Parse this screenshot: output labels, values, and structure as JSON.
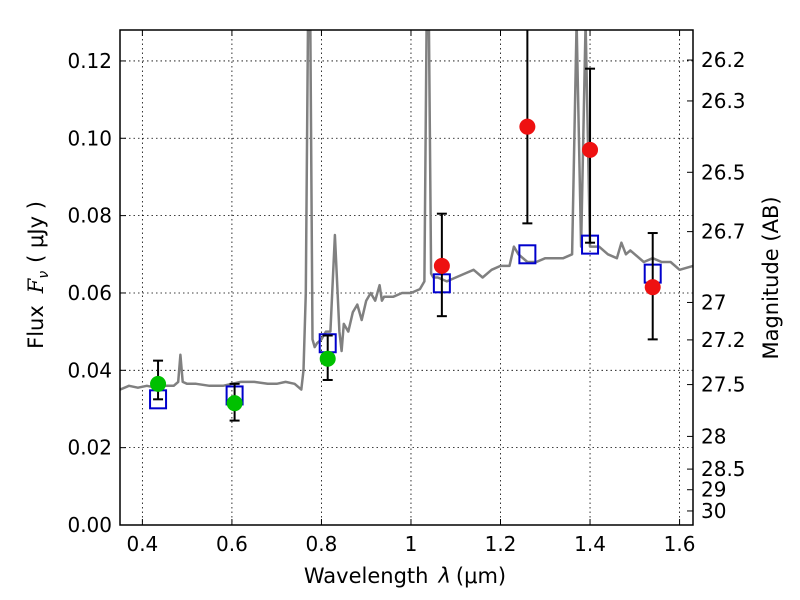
{
  "chart_data": {
    "type": "scatter",
    "xlabel_main": "Wavelength",
    "xlabel_symbol": "λ",
    "xlabel_unit": "(μm)",
    "ylabel_main": "Flux",
    "ylabel_symbol": "F",
    "ylabel_sub": "ν",
    "ylabel_unit": "( μJy )",
    "y2label": "Magnitude (AB)",
    "xlim": [
      0.35,
      1.63
    ],
    "ylim": [
      0.0,
      0.128
    ],
    "grid": true,
    "xticks": [
      {
        "value": 0.4,
        "label": "0.4"
      },
      {
        "value": 0.6,
        "label": "0.6"
      },
      {
        "value": 0.8,
        "label": "0.8"
      },
      {
        "value": 1.0,
        "label": "1"
      },
      {
        "value": 1.2,
        "label": "1.2"
      },
      {
        "value": 1.4,
        "label": "1.4"
      },
      {
        "value": 1.6,
        "label": "1.6"
      }
    ],
    "yticks": [
      {
        "value": 0.0,
        "label": "0.00"
      },
      {
        "value": 0.02,
        "label": "0.02"
      },
      {
        "value": 0.04,
        "label": "0.04"
      },
      {
        "value": 0.06,
        "label": "0.06"
      },
      {
        "value": 0.08,
        "label": "0.08"
      },
      {
        "value": 0.1,
        "label": "0.10"
      },
      {
        "value": 0.12,
        "label": "0.12"
      }
    ],
    "y2ticks": [
      {
        "mag": 26.2,
        "label": "26.2"
      },
      {
        "mag": 26.3,
        "label": "26.3"
      },
      {
        "mag": 26.5,
        "label": "26.5"
      },
      {
        "mag": 26.7,
        "label": "26.7"
      },
      {
        "mag": 27.0,
        "label": "27"
      },
      {
        "mag": 27.2,
        "label": "27.2"
      },
      {
        "mag": 27.5,
        "label": "27.5"
      },
      {
        "mag": 28.0,
        "label": "28"
      },
      {
        "mag": 28.5,
        "label": "28.5"
      },
      {
        "mag": 29.0,
        "label": "29"
      },
      {
        "mag": 30.0,
        "label": "30"
      }
    ],
    "series": [
      {
        "kind": "model_spectrum",
        "color": "#808080",
        "x": [
          0.35,
          0.37,
          0.39,
          0.41,
          0.43,
          0.45,
          0.47,
          0.48,
          0.485,
          0.49,
          0.5,
          0.52,
          0.55,
          0.58,
          0.6,
          0.62,
          0.65,
          0.68,
          0.7,
          0.72,
          0.74,
          0.755,
          0.76,
          0.765,
          0.77,
          0.775,
          0.78,
          0.785,
          0.79,
          0.8,
          0.81,
          0.82,
          0.83,
          0.84,
          0.845,
          0.85,
          0.86,
          0.87,
          0.88,
          0.89,
          0.9,
          0.91,
          0.92,
          0.93,
          0.935,
          0.94,
          0.96,
          0.98,
          1.0,
          1.02,
          1.03,
          1.035,
          1.04,
          1.045,
          1.05,
          1.06,
          1.08,
          1.1,
          1.12,
          1.14,
          1.16,
          1.18,
          1.2,
          1.22,
          1.23,
          1.24,
          1.26,
          1.28,
          1.3,
          1.32,
          1.34,
          1.36,
          1.37,
          1.38,
          1.39,
          1.4,
          1.42,
          1.44,
          1.46,
          1.47,
          1.48,
          1.49,
          1.5,
          1.52,
          1.54,
          1.56,
          1.58,
          1.6,
          1.63
        ],
        "y": [
          0.035,
          0.036,
          0.0355,
          0.036,
          0.0355,
          0.036,
          0.036,
          0.037,
          0.044,
          0.037,
          0.0365,
          0.0365,
          0.036,
          0.036,
          0.0365,
          0.037,
          0.037,
          0.0365,
          0.0365,
          0.037,
          0.0365,
          0.035,
          0.04,
          0.06,
          0.13,
          0.13,
          0.048,
          0.046,
          0.047,
          0.048,
          0.05,
          0.05,
          0.075,
          0.05,
          0.045,
          0.052,
          0.05,
          0.055,
          0.057,
          0.053,
          0.058,
          0.06,
          0.058,
          0.062,
          0.058,
          0.059,
          0.059,
          0.06,
          0.06,
          0.061,
          0.063,
          0.13,
          0.13,
          0.065,
          0.064,
          0.064,
          0.063,
          0.064,
          0.065,
          0.066,
          0.064,
          0.066,
          0.067,
          0.067,
          0.072,
          0.07,
          0.068,
          0.068,
          0.069,
          0.069,
          0.069,
          0.07,
          0.13,
          0.072,
          0.13,
          0.072,
          0.072,
          0.07,
          0.069,
          0.073,
          0.07,
          0.071,
          0.07,
          0.068,
          0.069,
          0.068,
          0.068,
          0.066,
          0.067
        ]
      },
      {
        "kind": "model_photometry",
        "marker": "open-square",
        "color": "#0000cc",
        "x": [
          0.435,
          0.606,
          0.814,
          1.069,
          1.26,
          1.4,
          1.54
        ],
        "y": [
          0.0325,
          0.0335,
          0.047,
          0.0625,
          0.07,
          0.0725,
          0.065
        ]
      },
      {
        "kind": "observed_photometry",
        "marker": "filled-circle",
        "color_optical": "#00c000",
        "color_ir": "#ee1111",
        "errcolor": "#000000",
        "x": [
          0.435,
          0.606,
          0.814,
          1.069,
          1.26,
          1.4,
          1.54
        ],
        "y": [
          0.0365,
          0.0315,
          0.043,
          0.067,
          0.103,
          0.097,
          0.0615
        ],
        "err_low": [
          0.0325,
          0.027,
          0.0375,
          0.054,
          0.078,
          0.073,
          0.048
        ],
        "err_high": [
          0.0425,
          0.0365,
          0.049,
          0.0805,
          0.128,
          0.118,
          0.0755
        ],
        "band_type": [
          "optical",
          "optical",
          "optical",
          "ir",
          "ir",
          "ir",
          "ir"
        ]
      }
    ]
  }
}
